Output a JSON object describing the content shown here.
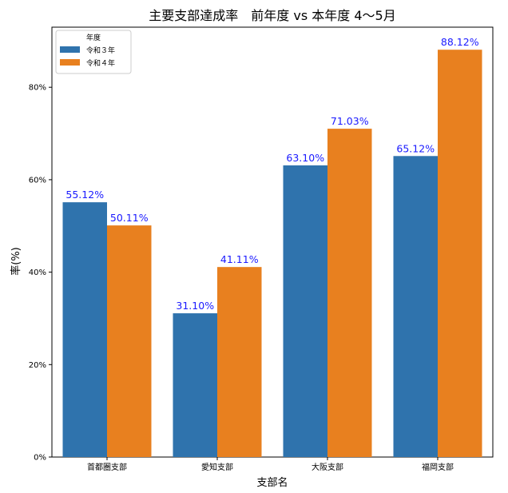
{
  "chart_data": {
    "type": "bar",
    "title": "主要支部達成率　前年度 vs 本年度 4〜5月",
    "xlabel": "支部名",
    "ylabel": "率(%)",
    "ylim": [
      0,
      93
    ],
    "y_ticks": [
      0,
      20,
      40,
      60,
      80
    ],
    "y_tick_labels": [
      "0%",
      "20%",
      "40%",
      "60%",
      "80%"
    ],
    "categories": [
      "首都圏支部",
      "愛知支部",
      "大阪支部",
      "福岡支部"
    ],
    "legend": {
      "title": "年度",
      "position": "top-left"
    },
    "series": [
      {
        "name": "令和３年",
        "color": "#2f73ad",
        "values": [
          55.12,
          31.1,
          63.1,
          65.12
        ],
        "labels": [
          "55.12%",
          "31.10%",
          "63.10%",
          "65.12%"
        ]
      },
      {
        "name": "令和４年",
        "color": "#e8801f",
        "values": [
          50.11,
          41.11,
          71.03,
          88.12
        ],
        "labels": [
          "50.11%",
          "41.11%",
          "71.03%",
          "88.12%"
        ]
      }
    ],
    "data_label_color": "#1a1aff"
  }
}
